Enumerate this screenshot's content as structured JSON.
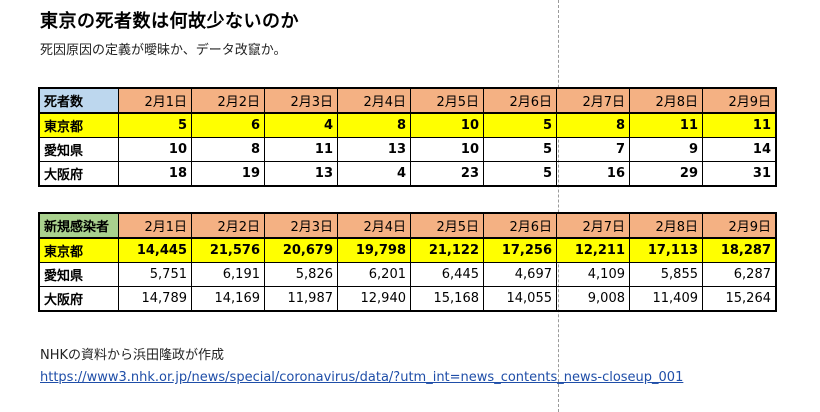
{
  "title": "東京の死者数は何故少ないのか",
  "subtitle": "死因原因の定義が曖昧か、データ改竄か。",
  "dates": [
    "2月1日",
    "2月2日",
    "2月3日",
    "2月4日",
    "2月5日",
    "2月6日",
    "2月7日",
    "2月8日",
    "2月9日"
  ],
  "deaths_table": {
    "header": "死者数",
    "rows": [
      {
        "label": "東京都",
        "values": [
          "5",
          "6",
          "4",
          "8",
          "10",
          "5",
          "8",
          "11",
          "11"
        ]
      },
      {
        "label": "愛知県",
        "values": [
          "10",
          "8",
          "11",
          "13",
          "10",
          "5",
          "7",
          "9",
          "14"
        ]
      },
      {
        "label": "大阪府",
        "values": [
          "18",
          "19",
          "13",
          "4",
          "23",
          "5",
          "16",
          "29",
          "31"
        ]
      }
    ]
  },
  "infections_table": {
    "header": "新規感染者",
    "rows": [
      {
        "label": "東京都",
        "values": [
          "14,445",
          "21,576",
          "20,679",
          "19,798",
          "21,122",
          "17,256",
          "12,211",
          "17,113",
          "18,287"
        ]
      },
      {
        "label": "愛知県",
        "values": [
          "5,751",
          "6,191",
          "5,826",
          "6,201",
          "6,445",
          "4,697",
          "4,109",
          "5,855",
          "6,287"
        ]
      },
      {
        "label": "大阪府",
        "values": [
          "14,789",
          "14,169",
          "11,987",
          "12,940",
          "15,168",
          "14,055",
          "9,008",
          "11,409",
          "15,264"
        ]
      }
    ]
  },
  "source_note": "NHKの資料から浜田隆政が作成",
  "source_link": "https://www3.nhk.or.jp/news/special/coronavirus/data/?utm_int=news_contents_news-closeup_001",
  "colors": {
    "header_dates": "#f4b183",
    "deaths_corner": "#bdd7ee",
    "infections_corner": "#a9d18e",
    "tokyo_highlight": "#ffff00",
    "link": "#1f4ea8"
  }
}
